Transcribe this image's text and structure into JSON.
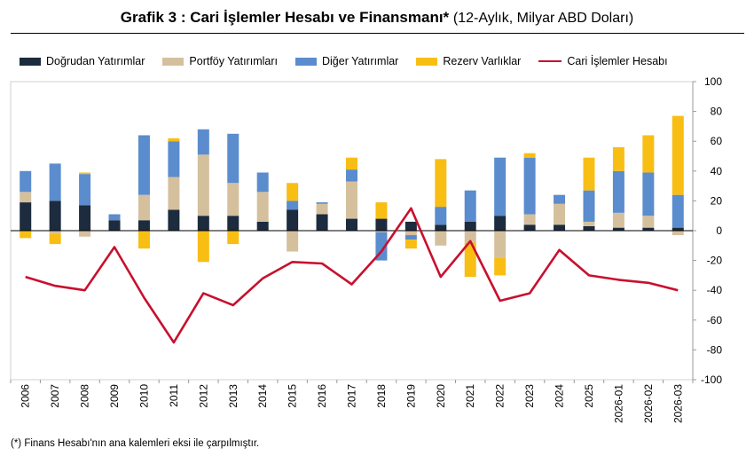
{
  "title": {
    "main": "Grafik 3 : Cari İşlemler Hesabı ve Finansmanı*",
    "subtitle": "(12-Aylık, Milyar ABD Doları)"
  },
  "legend": [
    {
      "label": "Doğrudan Yatırımlar",
      "color": "#1c2b3d",
      "kind": "bar"
    },
    {
      "label": "Portföy Yatırımları",
      "color": "#d5c09e",
      "kind": "bar"
    },
    {
      "label": "Diğer Yatırımlar",
      "color": "#5b8ccd",
      "kind": "bar"
    },
    {
      "label": "Rezerv Varlıklar",
      "color": "#f8be14",
      "kind": "bar"
    },
    {
      "label": "Cari İşlemler Hesabı",
      "color": "#c8102e",
      "kind": "line"
    }
  ],
  "footnote": "(*) Finans Hesabı'nın ana kalemleri eksi ile çarpılmıştır.",
  "chart_data": {
    "type": "bar",
    "stacked": true,
    "categories": [
      "2006",
      "2007",
      "2008",
      "2009",
      "2010",
      "2011",
      "2012",
      "2013",
      "2014",
      "2015",
      "2016",
      "2017",
      "2018",
      "2019",
      "2020",
      "2021",
      "2022",
      "2023",
      "2024",
      "2025",
      "2026-01",
      "2026-02",
      "2026-03"
    ],
    "series": [
      {
        "name": "Doğrudan Yatırımlar",
        "type": "bar",
        "color": "#1c2b3d",
        "values": [
          19,
          20,
          17,
          7,
          7,
          14,
          10,
          10,
          6,
          14,
          11,
          8,
          8,
          6,
          4,
          6,
          10,
          4,
          4,
          3,
          2,
          2,
          2
        ]
      },
      {
        "name": "Portföy Yatırımları",
        "type": "bar",
        "color": "#d5c09e",
        "values": [
          7,
          -2,
          -4,
          0,
          17,
          22,
          41,
          22,
          20,
          -14,
          7,
          25,
          -1,
          -3,
          -10,
          -8,
          -18,
          7,
          14,
          3,
          10,
          8,
          -3
        ]
      },
      {
        "name": "Diğer Yatırımlar",
        "type": "bar",
        "color": "#5b8ccd",
        "values": [
          14,
          25,
          21,
          4,
          40,
          24,
          17,
          33,
          13,
          6,
          1,
          8,
          -19,
          -3,
          12,
          21,
          39,
          38,
          6,
          21,
          28,
          29,
          22
        ]
      },
      {
        "name": "Rezerv Varlıklar",
        "type": "bar",
        "color": "#f8be14",
        "values": [
          -5,
          -7,
          1,
          0,
          -12,
          2,
          -21,
          -9,
          0,
          12,
          0,
          8,
          11,
          -6,
          32,
          -23,
          -12,
          3,
          0,
          22,
          16,
          25,
          53
        ]
      },
      {
        "name": "Cari İşlemler Hesabı",
        "type": "line",
        "color": "#c8102e",
        "values": [
          -31,
          -37,
          -40,
          -11,
          -45,
          -75,
          -42,
          -50,
          -32,
          -21,
          -22,
          -36,
          -14,
          15,
          -31,
          -7,
          -47,
          -42,
          -13,
          -30,
          -33,
          -35,
          -40
        ]
      }
    ],
    "y_axis": {
      "position": "right",
      "ylim": [
        -100,
        100
      ],
      "ticks": [
        -100,
        -80,
        -60,
        -40,
        -20,
        0,
        20,
        40,
        60,
        80,
        100
      ]
    },
    "xlabel": "",
    "ylabel": "",
    "grid": false,
    "legend_position": "top"
  }
}
